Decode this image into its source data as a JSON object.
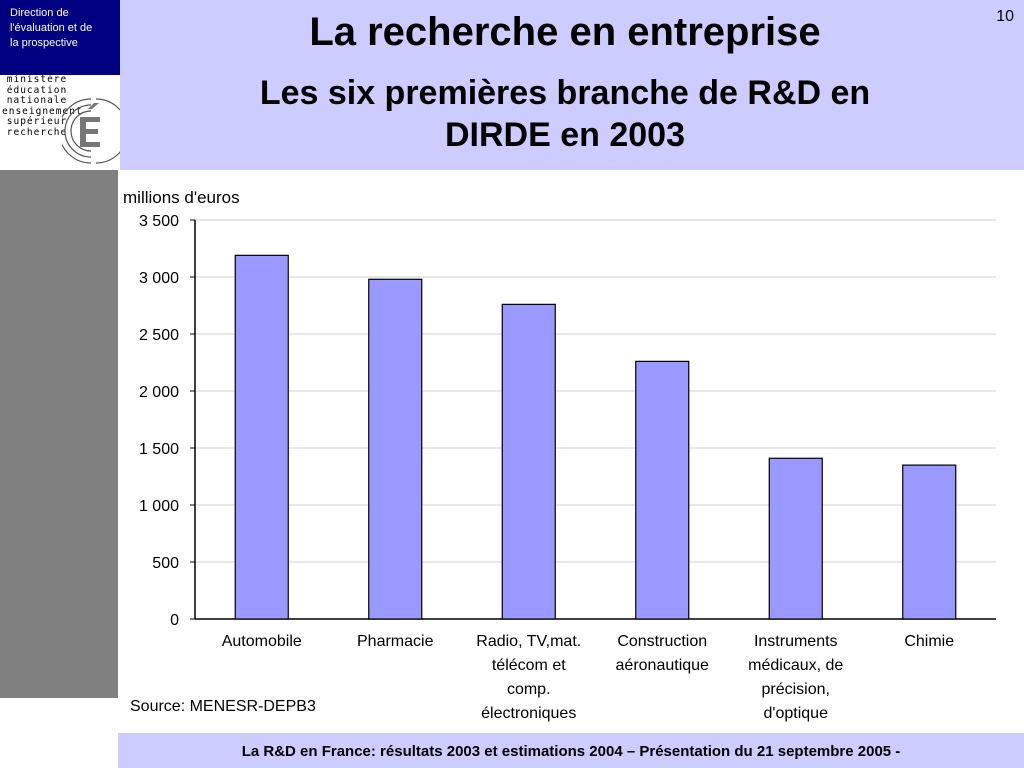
{
  "header": {
    "department": [
      "Direction de",
      "l'évaluation  et de",
      "la prospective"
    ],
    "ministry_lines": [
      "ministère",
      "éducation",
      "nationale",
      "enseignement",
      "supérieur",
      "recherche"
    ],
    "title": "La recherche en entreprise",
    "subtitle_lines": [
      "Les six premières branche de R&D en",
      "DIRDE en 2003"
    ],
    "page_number": "10"
  },
  "footer": {
    "text": "La R&D en France: résultats 2003 et estimations 2004 – Présentation du 21 septembre 2005 -"
  },
  "source": "Source: MENESR-DEPB3",
  "colors": {
    "header_bg": "#ccccff",
    "department_bg": "#000080",
    "bar_fill": "#9999ff",
    "sidebar": "#808080"
  },
  "chart_data": {
    "type": "bar",
    "ylabel": "millions d'euros",
    "ylim": [
      0,
      3500
    ],
    "yticks": [
      0,
      500,
      1000,
      1500,
      2000,
      2500,
      3000,
      3500
    ],
    "ytick_labels": [
      "0",
      "500",
      "1 000",
      "1 500",
      "2 000",
      "2 500",
      "3 000",
      "3 500"
    ],
    "grid": true,
    "categories": [
      [
        "Automobile"
      ],
      [
        "Pharmacie"
      ],
      [
        "Radio, TV,mat.",
        "télécom et",
        "comp.",
        "électroniques"
      ],
      [
        "Construction",
        "aéronautique"
      ],
      [
        "Instruments",
        "médicaux, de",
        "précision,",
        "d'optique"
      ],
      [
        "Chimie"
      ]
    ],
    "values": [
      3190,
      2980,
      2760,
      2260,
      1410,
      1350
    ]
  }
}
